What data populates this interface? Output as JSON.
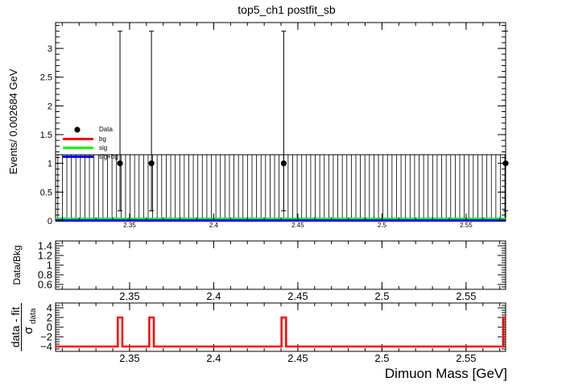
{
  "title": "top5_ch1   postfit_sb",
  "chart_data": [
    {
      "type": "scatter",
      "panel": "main",
      "ylabel": "Events/ 0.002684 GeV",
      "xlim": [
        2.306,
        2.5735
      ],
      "ylim": [
        0,
        3.45
      ],
      "x_ticks": [
        2.35,
        2.4,
        2.45,
        2.5,
        2.55
      ],
      "x_tick_labels": [
        "2.35",
        "2.4",
        "2.45",
        "2.5",
        "2.55"
      ],
      "y_ticks": [
        0,
        0.5,
        1,
        1.5,
        2,
        2.5,
        3
      ],
      "y_tick_labels": [
        "0",
        "0.5",
        "1",
        "1.5",
        "2",
        "2.5",
        "3"
      ],
      "legend": [
        {
          "name": "Data",
          "color": "#000000",
          "style": "marker"
        },
        {
          "name": "bg",
          "color": "#ff0000",
          "style": "line"
        },
        {
          "name": "sig",
          "color": "#00ff00",
          "style": "line"
        },
        {
          "name": "sig+bg",
          "color": "#0000ff",
          "style": "line"
        }
      ],
      "data_points": [
        {
          "x": 2.3443,
          "y": 1,
          "err_low": 0.827,
          "err_high": 2.3
        },
        {
          "x": 2.363,
          "y": 1,
          "err_low": 0.827,
          "err_high": 2.3
        },
        {
          "x": 2.4416,
          "y": 1,
          "err_low": 0.827,
          "err_high": 2.3
        },
        {
          "x": 2.5735,
          "y": 1,
          "err_low": 0.827,
          "err_high": 2.3
        }
      ],
      "empty_bin_error_high": 1.15,
      "bin_width": 0.002684,
      "series": [
        {
          "name": "bg",
          "color": "#ff0000",
          "y": 0.02
        },
        {
          "name": "sig",
          "color": "#00ff00",
          "y": 0.035
        },
        {
          "name": "sig+bg",
          "color": "#0000ff",
          "y": 0.005
        }
      ]
    },
    {
      "type": "scatter",
      "panel": "ratio",
      "ylabel": "Data/Bkg",
      "xlim": [
        2.306,
        2.5735
      ],
      "ylim": [
        0.5,
        1.5
      ],
      "x_ticks": [
        2.35,
        2.4,
        2.45,
        2.5,
        2.55
      ],
      "x_tick_labels": [
        "2.35",
        "2.4",
        "2.45",
        "2.5",
        "2.55"
      ],
      "y_ticks": [
        0.6,
        0.8,
        1,
        1.2,
        1.4
      ],
      "y_tick_labels": [
        "0.6",
        "0.8",
        "1",
        "1.2",
        "1.4"
      ]
    },
    {
      "type": "line",
      "panel": "pull",
      "ylabel_main": "data - fit",
      "ylabel_sub": "σ",
      "ylabel_subscript": "data",
      "xlabel": "Dimuon Mass [GeV]",
      "xlim": [
        2.306,
        2.5735
      ],
      "ylim": [
        -5,
        5
      ],
      "x_ticks": [
        2.35,
        2.4,
        2.45,
        2.5,
        2.55
      ],
      "x_tick_labels": [
        "2.35",
        "2.4",
        "2.45",
        "2.5",
        "2.55"
      ],
      "y_ticks": [
        -4,
        -2,
        0,
        2,
        4
      ],
      "y_tick_labels": [
        "−4",
        "−2",
        "0",
        "2",
        "4"
      ],
      "baseline": -4,
      "spikes": [
        {
          "x0": 2.343,
          "x1": 2.3457,
          "y": 2
        },
        {
          "x0": 2.3617,
          "x1": 2.3644,
          "y": 2
        },
        {
          "x0": 2.4403,
          "x1": 2.443,
          "y": 2
        },
        {
          "x0": 2.5722,
          "x1": 2.5735,
          "y": 2
        }
      ],
      "color": "#ff0000"
    }
  ]
}
